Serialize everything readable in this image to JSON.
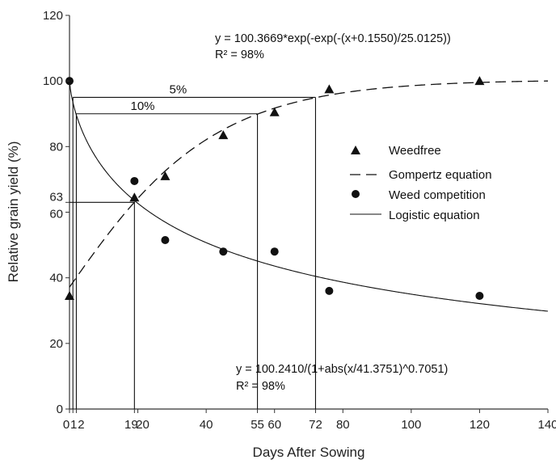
{
  "chart_data": {
    "type": "scatter",
    "xlabel": "Days After Sowing",
    "ylabel": "Relative grain yield (%)",
    "xlim": [
      0,
      140
    ],
    "ylim": [
      0,
      120
    ],
    "x_ticks": [
      {
        "value": 0,
        "label": "0"
      },
      {
        "value": 1,
        "label": "1"
      },
      {
        "value": 2,
        "label": "2"
      },
      {
        "value": 19,
        "label": "19"
      },
      {
        "value": 20,
        "label": "20"
      },
      {
        "value": 40,
        "label": "40"
      },
      {
        "value": 55,
        "label": "55"
      },
      {
        "value": 60,
        "label": "60"
      },
      {
        "value": 72,
        "label": "72"
      },
      {
        "value": 80,
        "label": "80"
      },
      {
        "value": 100,
        "label": "100"
      },
      {
        "value": 120,
        "label": "120"
      },
      {
        "value": 140,
        "label": "140"
      }
    ],
    "y_ticks": [
      {
        "value": 0,
        "label": "0"
      },
      {
        "value": 20,
        "label": "20"
      },
      {
        "value": 40,
        "label": "40"
      },
      {
        "value": 60,
        "label": "60"
      },
      {
        "value": 63,
        "label": "63"
      },
      {
        "value": 80,
        "label": "80"
      },
      {
        "value": 100,
        "label": "100"
      },
      {
        "value": 120,
        "label": "120"
      }
    ],
    "series": [
      {
        "name": "Weedfree",
        "marker": "triangle",
        "x": [
          0,
          19,
          28,
          45,
          60,
          76,
          120
        ],
        "y": [
          34.5,
          64.5,
          71,
          83.5,
          90.5,
          97.5,
          100
        ]
      },
      {
        "name": "Weed competition",
        "marker": "circle",
        "x": [
          0,
          19,
          28,
          45,
          60,
          76,
          120
        ],
        "y": [
          100,
          69.5,
          51.5,
          48,
          48,
          36,
          34.5
        ]
      }
    ],
    "fits": [
      {
        "name": "Gompertz equation",
        "style": "dashed",
        "equation": "y = 100.3669*exp(-exp(-(x+0.1550)/25.0125))",
        "r2": "R² = 98%",
        "a": 100.3669,
        "b": 0.155,
        "c": 25.0125
      },
      {
        "name": "Logistic equation",
        "style": "solid",
        "equation": "y = 100.2410/(1+abs(x/41.3751)^0.7051)",
        "r2": "R² = 98%",
        "a": 100.241,
        "b": 41.3751,
        "c": 0.7051
      }
    ],
    "reference_lines": {
      "horizontal": [
        {
          "y": 95,
          "x_from": 1,
          "x_to": 72,
          "label": "5%"
        },
        {
          "y": 90,
          "x_from": 2,
          "x_to": 55,
          "label": "10%"
        },
        {
          "y": 63,
          "x_from": 0,
          "x_to": 19,
          "label": ""
        }
      ],
      "vertical": [
        {
          "x": 1,
          "y_to": 95
        },
        {
          "x": 2,
          "y_to": 90
        },
        {
          "x": 19,
          "y_to": 63
        },
        {
          "x": 55,
          "y_to": 90
        },
        {
          "x": 72,
          "y_to": 95
        }
      ]
    },
    "legend_position": "right-center",
    "grid": false,
    "colors": {
      "line": "#111111",
      "marker": "#111111"
    }
  }
}
